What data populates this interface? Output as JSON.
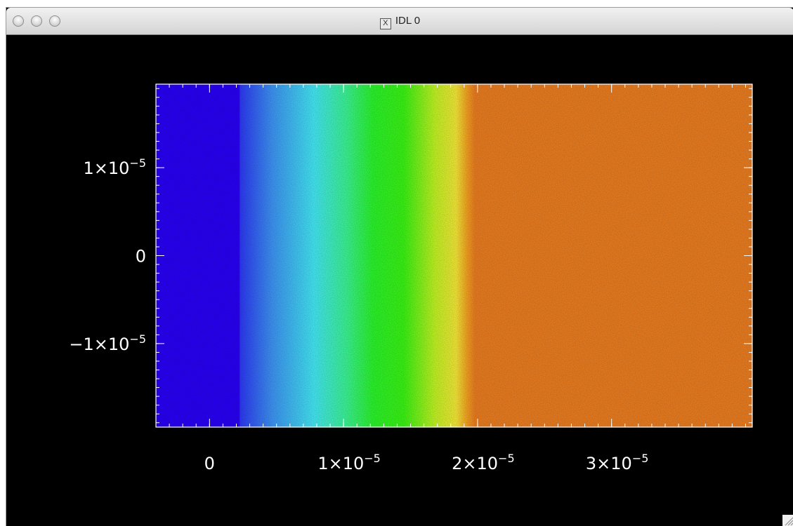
{
  "window": {
    "title": "IDL 0",
    "title_icon": "x11-icon",
    "buttons": [
      "close",
      "minimize",
      "zoom"
    ]
  },
  "chart_data": {
    "type": "heatmap",
    "title": "",
    "xlabel": "",
    "ylabel": "",
    "xlim": [
      -4e-06,
      4.05e-05
    ],
    "ylim": [
      -1.95e-05,
      1.95e-05
    ],
    "x_major_ticks": [
      {
        "value": 0,
        "label": "0"
      },
      {
        "value": 1e-05,
        "label": "1×10",
        "exp": "−5"
      },
      {
        "value": 2e-05,
        "label": "2×10",
        "exp": "−5"
      },
      {
        "value": 3e-05,
        "label": "3×10",
        "exp": "−5"
      }
    ],
    "y_major_ticks": [
      {
        "value": 1e-05,
        "label": "1×10",
        "exp": "−5"
      },
      {
        "value": 0,
        "label": "0"
      },
      {
        "value": -1e-05,
        "label": "−1×10",
        "exp": "−5"
      }
    ],
    "colormap": "rainbow",
    "color_bands_along_x": [
      {
        "x": -4e-06,
        "color": "#2a00ff"
      },
      {
        "x": 2.2e-06,
        "color": "#2a00ff"
      },
      {
        "x": 2.3e-06,
        "color": "#2f3cff"
      },
      {
        "x": 4.7e-06,
        "color": "#3f9bff"
      },
      {
        "x": 7.8e-06,
        "color": "#46f2ff"
      },
      {
        "x": 1.02e-05,
        "color": "#3dff9a"
      },
      {
        "x": 1.22e-05,
        "color": "#2cff2c"
      },
      {
        "x": 1.45e-05,
        "color": "#3cff14"
      },
      {
        "x": 1.68e-05,
        "color": "#c8ff24"
      },
      {
        "x": 1.84e-05,
        "color": "#fff23a"
      },
      {
        "x": 1.92e-05,
        "color": "#ffaa22"
      },
      {
        "x": 1.98e-05,
        "color": "#f48222"
      },
      {
        "x": 4.05e-05,
        "color": "#f48222"
      }
    ],
    "grid": false
  }
}
